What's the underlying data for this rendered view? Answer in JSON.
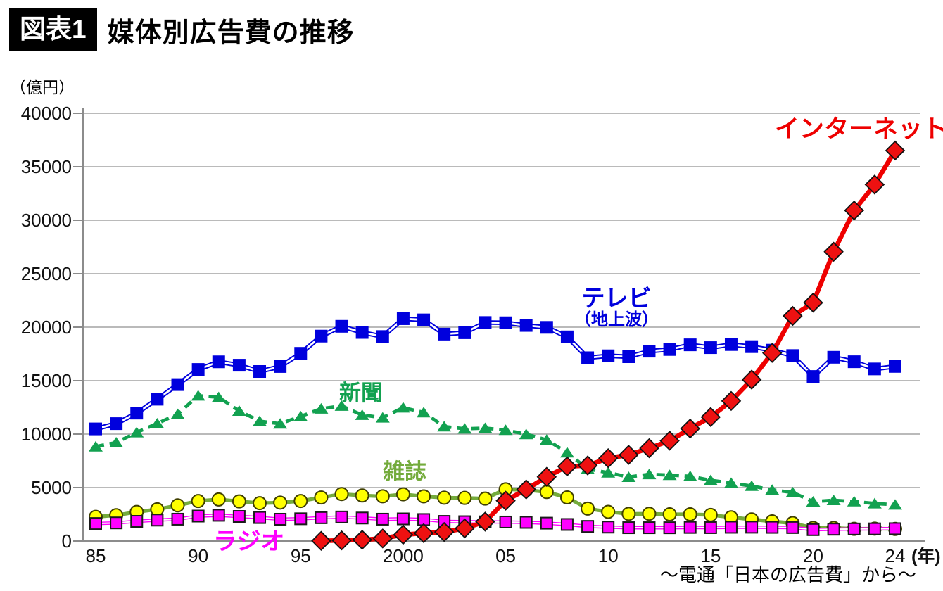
{
  "header": {
    "badge": "図表1",
    "title": "媒体別広告費の推移"
  },
  "chart_data": {
    "type": "line",
    "title": "媒体別広告費の推移",
    "ylabel": "（億円）",
    "xlabel": "",
    "x_unit": "(年)",
    "ylim": [
      0,
      40000
    ],
    "y_ticks": [
      0,
      5000,
      10000,
      15000,
      20000,
      25000,
      30000,
      35000,
      40000
    ],
    "x_ticks": [
      {
        "year": 1985,
        "label": "85"
      },
      {
        "year": 1990,
        "label": "90"
      },
      {
        "year": 1995,
        "label": "95"
      },
      {
        "year": 2000,
        "label": "2000"
      },
      {
        "year": 2005,
        "label": "05"
      },
      {
        "year": 2010,
        "label": "10"
      },
      {
        "year": 2015,
        "label": "15"
      },
      {
        "year": 2020,
        "label": "20"
      },
      {
        "year": 2024,
        "label": "24"
      }
    ],
    "grid": "horizontal",
    "legend_position": "inline-annotations",
    "series": [
      {
        "id": "tv",
        "name": "テレビ（地上波）",
        "color": "#0000dd",
        "line": "double",
        "marker": "square",
        "marker_fill": "#0000dd",
        "marker_stroke": "none",
        "start_year": 1985,
        "values": [
          10487,
          10980,
          11963,
          13263,
          14631,
          16046,
          16760,
          16442,
          15855,
          16322,
          17553,
          19162,
          20079,
          19505,
          19121,
          20793,
          20681,
          19351,
          19480,
          20436,
          20411,
          20161,
          19981,
          19092,
          17139,
          17321,
          17237,
          17757,
          17913,
          18347,
          18088,
          18374,
          18178,
          17848,
          17345,
          15386,
          17184,
          16768,
          16095,
          16330
        ]
      },
      {
        "id": "newspaper",
        "name": "新聞",
        "color": "#12a150",
        "line": "dashed",
        "marker": "triangle",
        "marker_fill": "#12a150",
        "marker_stroke": "none",
        "start_year": 1985,
        "values": [
          8834,
          9211,
          10159,
          10988,
          11865,
          13592,
          13445,
          12172,
          11211,
          10973,
          11657,
          12379,
          12636,
          11787,
          11535,
          12474,
          12027,
          10707,
          10500,
          10559,
          10377,
          9986,
          9462,
          8276,
          6739,
          6396,
          5990,
          6242,
          6170,
          6057,
          5679,
          5431,
          5147,
          4784,
          4547,
          3688,
          3815,
          3697,
          3512,
          3396
        ]
      },
      {
        "id": "magazine",
        "name": "雑誌",
        "color": "#74ab3c",
        "line": "solid",
        "marker": "circle",
        "marker_fill": "#ffff00",
        "marker_stroke": "#3f3f00",
        "start_year": 1985,
        "values": [
          2262,
          2416,
          2721,
          2967,
          3337,
          3741,
          3890,
          3709,
          3546,
          3595,
          3743,
          4073,
          4395,
          4258,
          4183,
          4369,
          4180,
          4051,
          4035,
          3970,
          4842,
          4777,
          4585,
          4078,
          3034,
          2733,
          2542,
          2551,
          2499,
          2500,
          2443,
          2223,
          2023,
          1841,
          1675,
          1223,
          1224,
          1140,
          1163,
          1133
        ]
      },
      {
        "id": "radio",
        "name": "ラジオ",
        "color": "#ff00ff",
        "line": "double",
        "marker": "square",
        "marker_fill": "#ff00ff",
        "marker_stroke": "#1a1a1a",
        "start_year": 1985,
        "values": [
          1636,
          1696,
          1841,
          1955,
          2043,
          2335,
          2406,
          2301,
          2197,
          2040,
          2082,
          2181,
          2247,
          2153,
          2043,
          2071,
          2012,
          1837,
          1807,
          1795,
          1778,
          1744,
          1671,
          1549,
          1370,
          1299,
          1247,
          1246,
          1243,
          1272,
          1254,
          1285,
          1290,
          1278,
          1260,
          1066,
          1106,
          1129,
          1139,
          1155
        ]
      },
      {
        "id": "internet",
        "name": "インターネット",
        "color": "#ee0000",
        "line": "solid",
        "marker": "diamond",
        "marker_fill": "#ee1111",
        "marker_stroke": "#111111",
        "start_year": 1996,
        "values": [
          16,
          60,
          114,
          241,
          590,
          735,
          845,
          1183,
          1814,
          3777,
          4826,
          6003,
          6983,
          7069,
          7747,
          8062,
          8680,
          9381,
          10519,
          11594,
          13100,
          15094,
          17589,
          21048,
          22290,
          27052,
          30912,
          33330,
          36517
        ]
      }
    ],
    "annotations": {
      "internet": {
        "text": "インターネット",
        "color": "#ee0000"
      },
      "tv": {
        "text": "テレビ",
        "sub": "（地上波）",
        "color": "#0000dd"
      },
      "newspaper": {
        "text": "新聞",
        "color": "#12a150"
      },
      "magazine": {
        "text": "雑誌",
        "color": "#74ab3c"
      },
      "radio": {
        "text": "ラジオ",
        "color": "#ff00ff"
      }
    },
    "source": "～電通「日本の広告費」から～"
  }
}
